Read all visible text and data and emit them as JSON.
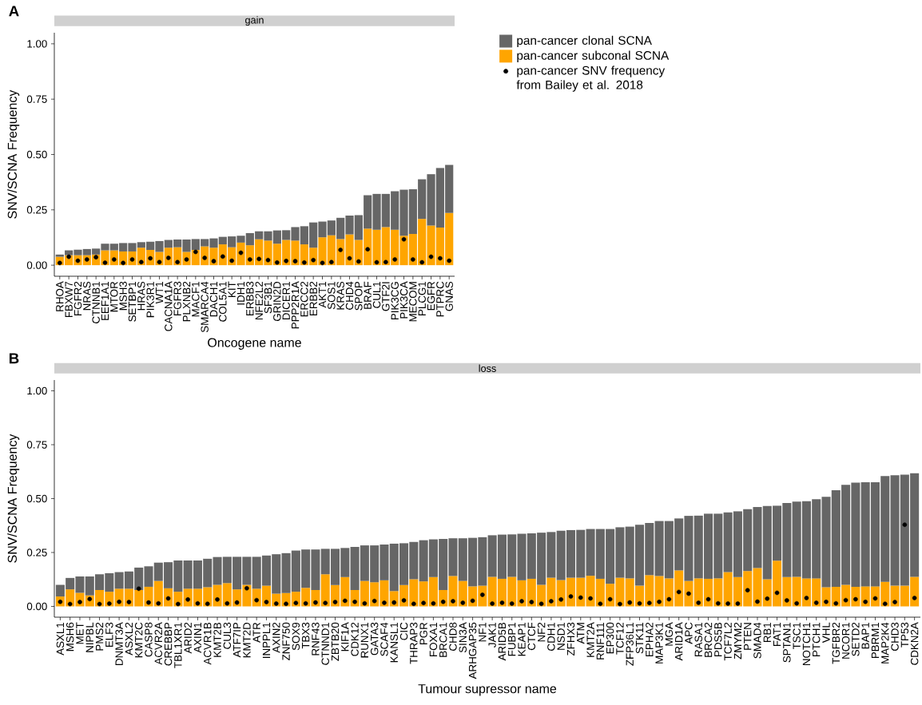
{
  "chart_data": [
    {
      "type": "bar",
      "title": "gain",
      "annotations": [
        "A"
      ],
      "stacked": true,
      "legend": "right",
      "xlabel": "Oncogene name",
      "ylabel": "SNV/SCNA Frequency",
      "ylim": [
        -0.05,
        1.05
      ],
      "yticks": [
        {
          "value": 0,
          "label": "0.00"
        },
        {
          "value": 0.25,
          "label": "0.25"
        },
        {
          "value": 0.5,
          "label": "0.50"
        },
        {
          "value": 0.75,
          "label": "0.75"
        },
        {
          "value": 1,
          "label": "1.00"
        }
      ],
      "categories": [
        "RHOA",
        "FBXW7",
        "FGFR2",
        "NRAS",
        "CTNNB1",
        "EEF1A1",
        "MTOR",
        "MSH3",
        "SETBP1",
        "HRAS",
        "PIK3R1",
        "WT1",
        "CACNA1A",
        "FGFR3",
        "PLXNB2",
        "MACF1",
        "SMARCA4",
        "DACH1",
        "COL5A1",
        "KIT",
        "IDH1",
        "ERBB3",
        "NFE2L2",
        "SF3B1",
        "GRIN2D",
        "DICER1",
        "PPP2R1A",
        "ERCC2",
        "ERBB2",
        "AKT1",
        "SOS1",
        "KRAS",
        "CHD4",
        "SPOP",
        "BRAF",
        "CUL1",
        "GTF2I",
        "PIK3CG",
        "PIK3CA",
        "MECOM",
        "PLCG1",
        "EGFR",
        "PTPRC",
        "GNAS"
      ],
      "series": [
        {
          "name": "pan-cancer subconal SCNA",
          "color": "#ffa500",
          "values": [
            0.038,
            0.045,
            0.045,
            0.045,
            0.048,
            0.067,
            0.067,
            0.062,
            0.062,
            0.079,
            0.069,
            0.06,
            0.079,
            0.081,
            0.06,
            0.069,
            0.085,
            0.079,
            0.094,
            0.081,
            0.102,
            0.09,
            0.117,
            0.111,
            0.097,
            0.114,
            0.111,
            0.094,
            0.079,
            0.126,
            0.135,
            0.118,
            0.139,
            0.114,
            0.165,
            0.16,
            0.172,
            0.16,
            0.133,
            0.141,
            0.209,
            0.179,
            0.17,
            0.236
          ]
        },
        {
          "name": "pan-cancer clonal SCNA",
          "color": "#666666",
          "values": [
            0.01,
            0.022,
            0.025,
            0.028,
            0.027,
            0.03,
            0.03,
            0.038,
            0.038,
            0.025,
            0.037,
            0.049,
            0.035,
            0.035,
            0.056,
            0.049,
            0.033,
            0.042,
            0.034,
            0.049,
            0.031,
            0.055,
            0.036,
            0.042,
            0.06,
            0.044,
            0.061,
            0.082,
            0.114,
            0.071,
            0.067,
            0.096,
            0.085,
            0.112,
            0.151,
            0.162,
            0.15,
            0.174,
            0.208,
            0.202,
            0.179,
            0.232,
            0.269,
            0.217
          ]
        },
        {
          "type": "scatter",
          "marker": "circle",
          "name": "pan-cancer SNV frequency from Bailey et al. 2018",
          "color": "#000000",
          "x": [
            "RHOA",
            "FBXW7",
            "FGFR2",
            "NRAS",
            "CTNNB1",
            "EEF1A1",
            "MTOR",
            "MSH3",
            "SETBP1",
            "HRAS",
            "PIK3R1",
            "WT1",
            "CACNA1A",
            "FGFR3",
            "PLXNB2",
            "MACF1",
            "SMARCA4",
            "DACH1",
            "COL5A1",
            "KIT",
            "IDH1",
            "ERBB3",
            "NFE2L2",
            "SF3B1",
            "GRIN2D",
            "DICER1",
            "PPP2R1A",
            "ERCC2",
            "ERBB2",
            "AKT1",
            "SOS1",
            "KRAS",
            "CHD4",
            "SPOP",
            "BRAF",
            "CUL1",
            "GTF2I",
            "PIK3CG",
            "PIK3CA",
            "MECOM",
            "PLCG1",
            "EGFR",
            "PTPRC",
            "GNAS"
          ],
          "values": [
            0.01,
            0.038,
            0.02,
            0.026,
            0.036,
            0.011,
            0.026,
            0.01,
            0.026,
            0.014,
            0.031,
            0.014,
            0.033,
            0.014,
            0.026,
            0.06,
            0.033,
            0.018,
            0.039,
            0.02,
            0.056,
            0.026,
            0.028,
            0.023,
            0.012,
            0.019,
            0.018,
            0.012,
            0.023,
            0.01,
            0.014,
            0.069,
            0.031,
            0.017,
            0.072,
            0.013,
            0.014,
            0.026,
            0.117,
            0.026,
            0.013,
            0.038,
            0.031,
            0.02
          ]
        }
      ]
    },
    {
      "type": "bar",
      "title": "loss",
      "annotations": [
        "B"
      ],
      "stacked": true,
      "xlabel": "Tumour supressor name",
      "ylabel": "SNV/SCNA Frequency",
      "ylim": [
        -0.05,
        1.05
      ],
      "yticks": [
        {
          "value": 0,
          "label": "0.00"
        },
        {
          "value": 0.25,
          "label": "0.25"
        },
        {
          "value": 0.5,
          "label": "0.50"
        },
        {
          "value": 0.75,
          "label": "0.75"
        },
        {
          "value": 1,
          "label": "1.00"
        }
      ],
      "categories": [
        "ASXL1",
        "MSH6",
        "MET",
        "NIPBL",
        "PMS2",
        "ELF3",
        "DNMT3A",
        "ASXL2",
        "KMT2C",
        "CASP8",
        "ACVR2A",
        "CREBBP",
        "TBL1XR1",
        "ARID2",
        "AXIN1",
        "ACVR1B",
        "KMT2B",
        "CUL3",
        "ATF7IP",
        "KMT2D",
        "ATR",
        "INPPL1",
        "AXIN2",
        "ZNF750",
        "SOX9",
        "TBX3",
        "RNF43",
        "CTNND1",
        "ZBTB20",
        "KIF1A",
        "CDK12",
        "RUNX1",
        "GATA3",
        "SCAF4",
        "KANSL1",
        "CIC",
        "THRAP3",
        "PGR",
        "FOXA1",
        "BRCA1",
        "CHD8",
        "SIN3A",
        "ARHGAP35",
        "NF1",
        "JAK1",
        "ARID5B",
        "FUBP1",
        "KEAP1",
        "CTCF",
        "NF2",
        "CDH1",
        "NSD1",
        "ZFHX3",
        "ATM",
        "KMT2A",
        "RNF111",
        "EP300",
        "TCF12",
        "ZFP36L1",
        "STK11",
        "EPHA2",
        "MAP3K1",
        "MGA",
        "ARID1A",
        "APC",
        "RASA1",
        "BRCA2",
        "PDS5B",
        "TCF7L2",
        "ZMYM2",
        "PTEN",
        "SMAD4",
        "RB1",
        "FAT1",
        "SPTAN1",
        "TSC1",
        "NOTCH1",
        "PTCH1",
        "VHL",
        "TGFBR2",
        "NCOR1",
        "SETD2",
        "BAP1",
        "PBRM1",
        "MAP2K4",
        "CHD3",
        "TP53",
        "CDKN2A"
      ],
      "series": [
        {
          "color": "#ffa500",
          "values": [
            0.046,
            0.079,
            0.063,
            0.051,
            0.076,
            0.068,
            0.082,
            0.082,
            0.076,
            0.091,
            0.118,
            0.084,
            0.068,
            0.082,
            0.082,
            0.089,
            0.1,
            0.108,
            0.079,
            0.1,
            0.082,
            0.096,
            0.059,
            0.062,
            0.068,
            0.086,
            0.076,
            0.149,
            0.099,
            0.136,
            0.076,
            0.118,
            0.112,
            0.121,
            0.071,
            0.099,
            0.126,
            0.116,
            0.136,
            0.076,
            0.141,
            0.118,
            0.093,
            0.096,
            0.137,
            0.128,
            0.137,
            0.121,
            0.128,
            0.1,
            0.133,
            0.122,
            0.133,
            0.133,
            0.142,
            0.128,
            0.105,
            0.133,
            0.13,
            0.096,
            0.145,
            0.141,
            0.13,
            0.167,
            0.118,
            0.13,
            0.128,
            0.13,
            0.159,
            0.136,
            0.164,
            0.178,
            0.126,
            0.212,
            0.136,
            0.137,
            0.13,
            0.13,
            0.089,
            0.091,
            0.1,
            0.091,
            0.093,
            0.093,
            0.114,
            0.096,
            0.096,
            0.137
          ]
        },
        {
          "color": "#666666",
          "values": [
            0.054,
            0.053,
            0.076,
            0.088,
            0.073,
            0.086,
            0.077,
            0.08,
            0.104,
            0.095,
            0.085,
            0.121,
            0.145,
            0.131,
            0.131,
            0.132,
            0.129,
            0.122,
            0.151,
            0.13,
            0.148,
            0.14,
            0.183,
            0.185,
            0.191,
            0.178,
            0.188,
            0.118,
            0.168,
            0.135,
            0.2,
            0.165,
            0.171,
            0.166,
            0.22,
            0.194,
            0.173,
            0.191,
            0.175,
            0.237,
            0.175,
            0.198,
            0.225,
            0.225,
            0.193,
            0.205,
            0.197,
            0.216,
            0.211,
            0.242,
            0.212,
            0.229,
            0.221,
            0.222,
            0.217,
            0.231,
            0.254,
            0.234,
            0.24,
            0.283,
            0.242,
            0.255,
            0.266,
            0.241,
            0.302,
            0.291,
            0.302,
            0.3,
            0.277,
            0.305,
            0.287,
            0.283,
            0.34,
            0.255,
            0.344,
            0.349,
            0.358,
            0.367,
            0.419,
            0.448,
            0.464,
            0.483,
            0.483,
            0.483,
            0.491,
            0.512,
            0.515,
            0.481
          ]
        },
        {
          "type": "scatter",
          "marker": "circle",
          "color": "#000000",
          "x": [
            "ASXL1",
            "MSH6",
            "MET",
            "NIPBL",
            "PMS2",
            "ELF3",
            "DNMT3A",
            "ASXL2",
            "KMT2C",
            "CASP8",
            "ACVR2A",
            "CREBBP",
            "TBL1XR1",
            "ARID2",
            "AXIN1",
            "ACVR1B",
            "KMT2B",
            "CUL3",
            "ATF7IP",
            "KMT2D",
            "ATR",
            "INPPL1",
            "AXIN2",
            "ZNF750",
            "SOX9",
            "TBX3",
            "RNF43",
            "CTNND1",
            "ZBTB20",
            "KIF1A",
            "CDK12",
            "RUNX1",
            "GATA3",
            "SCAF4",
            "KANSL1",
            "CIC",
            "THRAP3",
            "PGR",
            "FOXA1",
            "BRCA1",
            "CHD8",
            "SIN3A",
            "ARHGAP35",
            "NF1",
            "JAK1",
            "ARID5B",
            "FUBP1",
            "KEAP1",
            "CTCF",
            "NF2",
            "CDH1",
            "NSD1",
            "ZFHX3",
            "ATM",
            "KMT2A",
            "RNF111",
            "EP300",
            "TCF12",
            "ZFP36L1",
            "STK11",
            "EPHA2",
            "MAP3K1",
            "MGA",
            "ARID1A",
            "APC",
            "RASA1",
            "BRCA2",
            "PDS5B",
            "TCF7L2",
            "ZMYM2",
            "PTEN",
            "SMAD4",
            "RB1",
            "FAT1",
            "SPTAN1",
            "TSC1",
            "NOTCH1",
            "PTCH1",
            "VHL",
            "TGFBR2",
            "NCOR1",
            "SETD2",
            "BAP1",
            "PBRM1",
            "MAP2K4",
            "CHD3",
            "TP53",
            "CDKN2A"
          ],
          "values": [
            0.021,
            0.011,
            0.02,
            0.034,
            0.011,
            0.013,
            0.021,
            0.02,
            0.082,
            0.018,
            0.014,
            0.037,
            0.011,
            0.032,
            0.014,
            0.012,
            0.032,
            0.014,
            0.018,
            0.084,
            0.029,
            0.02,
            0.013,
            0.012,
            0.016,
            0.014,
            0.018,
            0.016,
            0.02,
            0.026,
            0.021,
            0.014,
            0.025,
            0.017,
            0.018,
            0.028,
            0.012,
            0.016,
            0.014,
            0.021,
            0.024,
            0.017,
            0.026,
            0.054,
            0.013,
            0.017,
            0.013,
            0.024,
            0.02,
            0.012,
            0.024,
            0.032,
            0.046,
            0.041,
            0.037,
            0.012,
            0.033,
            0.011,
            0.018,
            0.014,
            0.016,
            0.021,
            0.033,
            0.067,
            0.059,
            0.017,
            0.033,
            0.014,
            0.013,
            0.013,
            0.075,
            0.022,
            0.036,
            0.063,
            0.028,
            0.014,
            0.039,
            0.017,
            0.021,
            0.014,
            0.029,
            0.033,
            0.021,
            0.037,
            0.012,
            0.02,
            0.379,
            0.039
          ]
        }
      ]
    }
  ]
}
